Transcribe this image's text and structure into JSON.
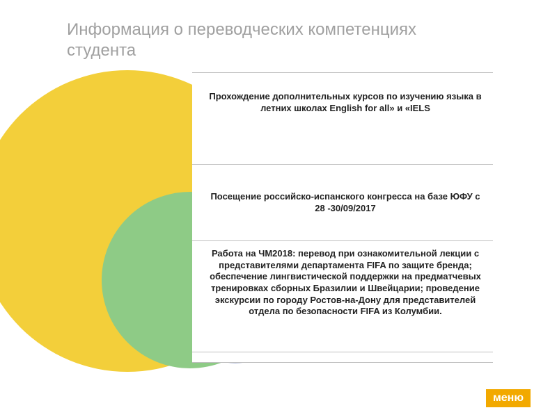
{
  "title": "Информация о переводческих компетенциях студента",
  "menu_label": "меню",
  "menu_bg": "#f2a900",
  "diagram": {
    "type": "infographic",
    "circles": [
      {
        "name": "outer",
        "fill": "#f3cf3a"
      },
      {
        "name": "middle",
        "fill": "#8ecb86"
      },
      {
        "name": "inner",
        "fill": "#b9c2df"
      }
    ],
    "box_border_color": "#bfbfbf",
    "text_color": "#222222",
    "font_size_pt": 10,
    "rows": [
      "Прохождение дополнительных курсов по изучению языка в летних школах English for all» и «IELS",
      "Посещение российско-испанского конгресса на базе ЮФУ с 28 -30/09/2017",
      "Работа на ЧМ2018: перевод при ознакомительной лекции с представителями департамента FIFA по защите бренда; обеспечение лингвистической поддержки на предматчевых тренировках сборных Бразилии и Швейцарии; проведение экскурсии по городу Ростов-на-Дону для представителей отдела по безопасности FIFA из Колумбии."
    ]
  }
}
